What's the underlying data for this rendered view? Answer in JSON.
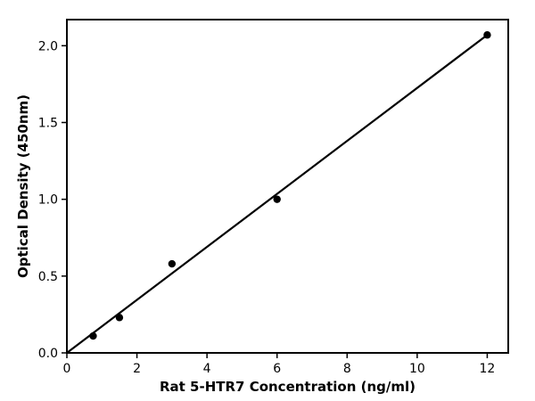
{
  "chart_data": {
    "type": "scatter",
    "title": "",
    "xlabel": "Rat 5-HTR7 Concentration (ng/ml)",
    "ylabel": "Optical Density (450nm)",
    "xlim": [
      0,
      12.6
    ],
    "ylim": [
      0,
      2.17
    ],
    "x_ticks": [
      0,
      2,
      4,
      6,
      8,
      10,
      12
    ],
    "x_tick_labels": [
      "0",
      "2",
      "4",
      "6",
      "8",
      "10",
      "12"
    ],
    "y_ticks": [
      0,
      0.5,
      1.0,
      1.5,
      2.0
    ],
    "y_tick_labels": [
      "0.0",
      "0.5",
      "1.0",
      "1.5",
      "2.0"
    ],
    "grid": false,
    "series": [
      {
        "x": [
          0.75,
          1.5,
          3,
          6,
          12
        ],
        "y": [
          0.11,
          0.23,
          0.58,
          1.0,
          2.07
        ],
        "color": "#000000"
      }
    ],
    "fit_line": {
      "x": [
        0,
        12
      ],
      "y": [
        0,
        2.07
      ],
      "color": "#000000"
    }
  }
}
